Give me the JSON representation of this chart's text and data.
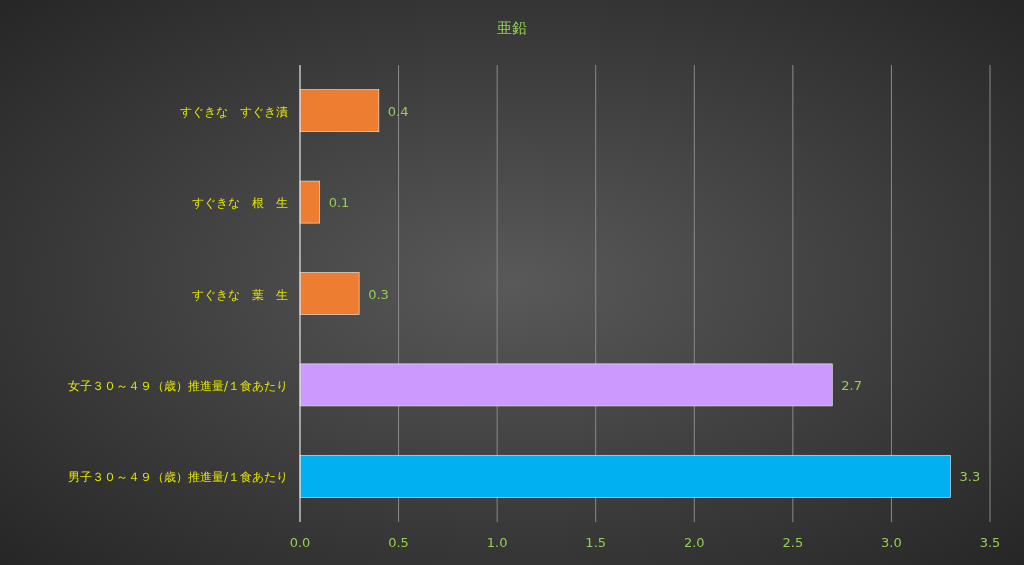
{
  "chart_data": {
    "type": "bar",
    "orientation": "horizontal",
    "title": "亜鉛",
    "categories": [
      "すぐきな　すぐき漬",
      "すぐきな　根　生",
      "すぐきな　葉　生",
      "女子３０～４９（歳）推進量/１食あたり",
      "男子３０～４９（歳）推進量/１食あたり"
    ],
    "values": [
      0.4,
      0.1,
      0.3,
      2.7,
      3.3
    ],
    "colors": [
      "#ed7d31",
      "#ed7d31",
      "#ed7d31",
      "#cc99ff",
      "#00b0f0"
    ],
    "xlim": [
      0,
      3.5
    ],
    "xticks": [
      {
        "value": 0,
        "label": "0.0"
      },
      {
        "value": 0.5,
        "label": "0.5"
      },
      {
        "value": 1,
        "label": "1.0"
      },
      {
        "value": 1.5,
        "label": "1.5"
      },
      {
        "value": 2,
        "label": "2.0"
      },
      {
        "value": 2.5,
        "label": "2.5"
      },
      {
        "value": 3,
        "label": "3.0"
      },
      {
        "value": 3.5,
        "label": "3.5"
      }
    ],
    "grid": "x",
    "data_labels": true
  }
}
